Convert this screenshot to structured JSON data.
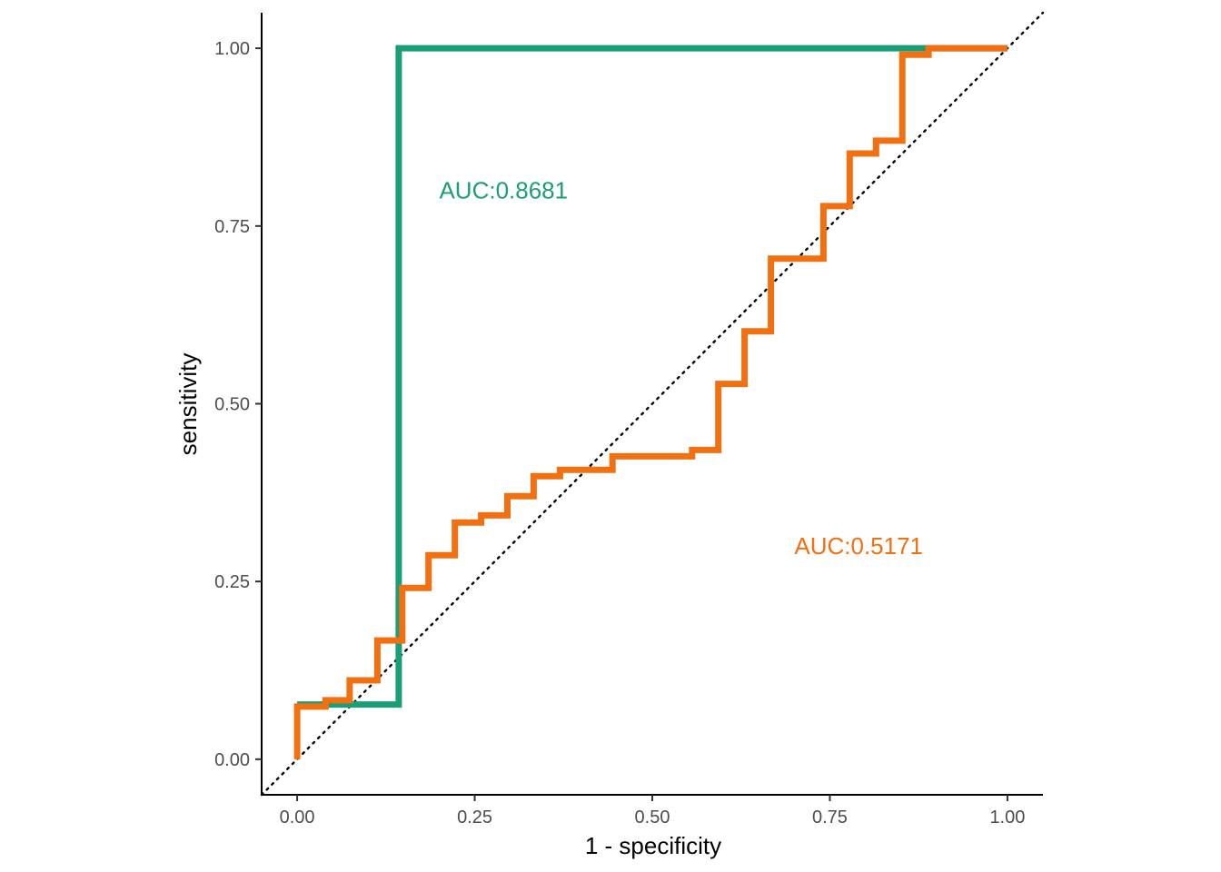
{
  "chart_data": {
    "type": "line",
    "title": "",
    "xlabel": "1 - specificity",
    "ylabel": "sensitivity",
    "xlim": [
      -0.05,
      1.05
    ],
    "ylim": [
      -0.05,
      1.05
    ],
    "x_ticks": [
      0,
      0.25,
      0.5,
      0.75,
      1
    ],
    "x_tick_labels": [
      "0.00",
      "0.25",
      "0.50",
      "0.75",
      "1.00"
    ],
    "y_ticks": [
      0,
      0.25,
      0.5,
      0.75,
      1
    ],
    "y_tick_labels": [
      "0.00",
      "0.25",
      "0.50",
      "0.75",
      "1.00"
    ],
    "grid": false,
    "reference_line": {
      "from": [
        0,
        0
      ],
      "to": [
        1,
        1
      ],
      "style": "dotted"
    },
    "series": [
      {
        "color": "#1b9e77",
        "annotation": "AUC:0.8681",
        "annotation_at": [
          0.2,
          0.8
        ],
        "points": [
          [
            0,
            0.077
          ],
          [
            0.143,
            0.077
          ],
          [
            0.143,
            1
          ],
          [
            0.889,
            1
          ],
          [
            1,
            1
          ]
        ]
      },
      {
        "color": "#f07012",
        "annotation": "AUC:0.5171",
        "annotation_at": [
          0.7,
          0.3
        ],
        "points": [
          [
            0,
            0
          ],
          [
            0,
            0.074
          ],
          [
            0.04,
            0.074
          ],
          [
            0.04,
            0.083
          ],
          [
            0.074,
            0.083
          ],
          [
            0.074,
            0.111
          ],
          [
            0.113,
            0.111
          ],
          [
            0.113,
            0.167
          ],
          [
            0.148,
            0.167
          ],
          [
            0.148,
            0.241
          ],
          [
            0.185,
            0.241
          ],
          [
            0.185,
            0.287
          ],
          [
            0.222,
            0.287
          ],
          [
            0.222,
            0.333
          ],
          [
            0.259,
            0.333
          ],
          [
            0.259,
            0.343
          ],
          [
            0.296,
            0.343
          ],
          [
            0.296,
            0.37
          ],
          [
            0.333,
            0.37
          ],
          [
            0.333,
            0.398
          ],
          [
            0.37,
            0.398
          ],
          [
            0.37,
            0.407
          ],
          [
            0.444,
            0.407
          ],
          [
            0.444,
            0.426
          ],
          [
            0.556,
            0.426
          ],
          [
            0.556,
            0.435
          ],
          [
            0.593,
            0.435
          ],
          [
            0.593,
            0.528
          ],
          [
            0.63,
            0.528
          ],
          [
            0.63,
            0.602
          ],
          [
            0.667,
            0.602
          ],
          [
            0.667,
            0.704
          ],
          [
            0.741,
            0.704
          ],
          [
            0.741,
            0.778
          ],
          [
            0.778,
            0.778
          ],
          [
            0.778,
            0.852
          ],
          [
            0.815,
            0.852
          ],
          [
            0.815,
            0.87
          ],
          [
            0.852,
            0.87
          ],
          [
            0.852,
            0.991
          ],
          [
            0.889,
            0.991
          ],
          [
            0.889,
            1
          ],
          [
            1,
            1
          ]
        ]
      }
    ]
  }
}
